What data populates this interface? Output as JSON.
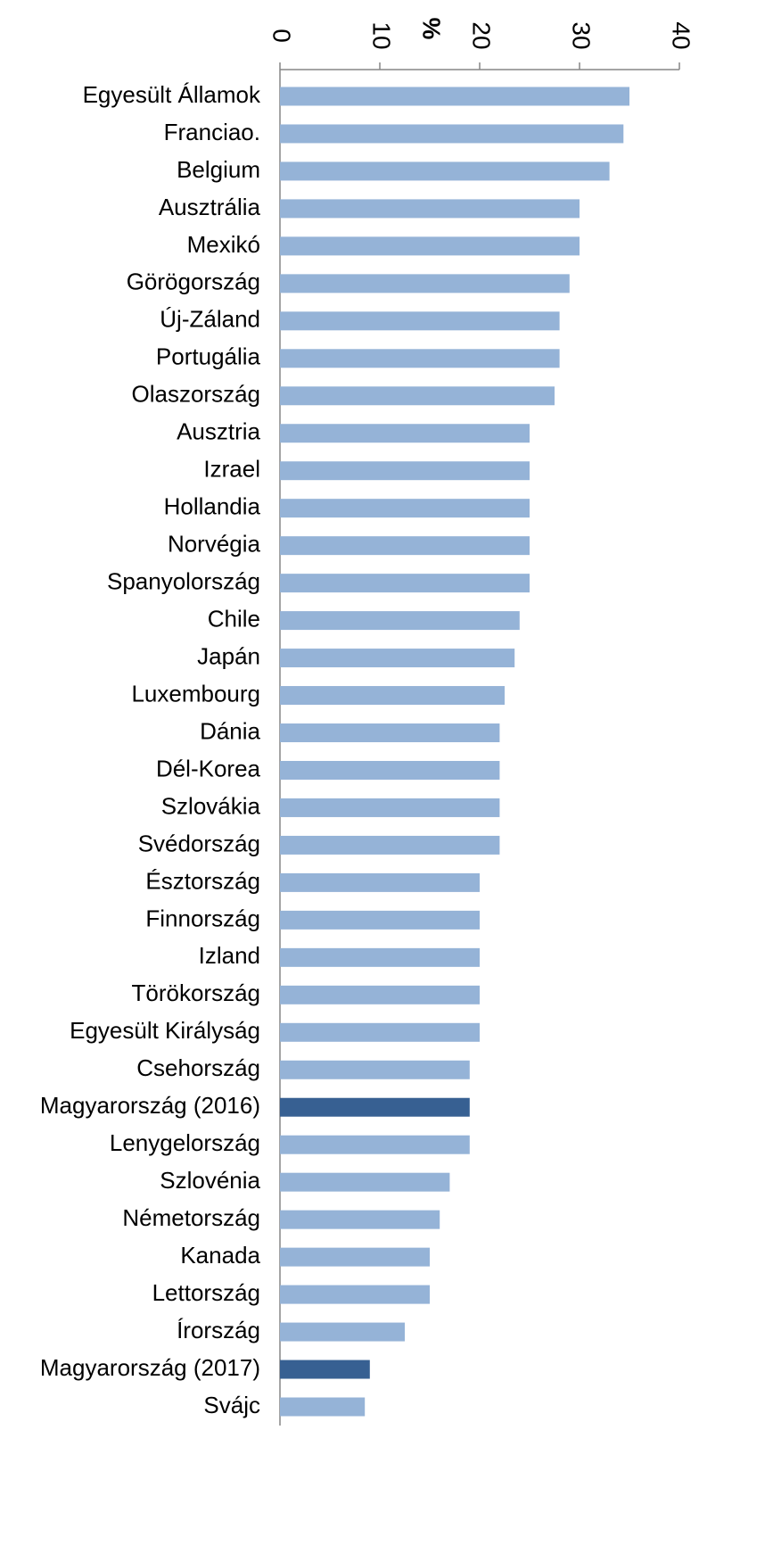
{
  "chart_data": {
    "type": "bar",
    "orientation": "horizontal",
    "axis_label": "%",
    "categories": [
      "Egyesült Államok",
      "Franciao.",
      "Belgium",
      "Ausztrália",
      "Mexikó",
      "Görögország",
      "Új-Záland",
      "Portugália",
      "Olaszország",
      "Ausztria",
      "Izrael",
      "Hollandia",
      "Norvégia",
      "Spanyolország",
      "Chile",
      "Japán",
      "Luxembourg",
      "Dánia",
      "Dél-Korea",
      "Szlovákia",
      "Svédország",
      "Észtország",
      "Finnország",
      "Izland",
      "Törökország",
      "Egyesült Királyság",
      "Csehország",
      "Magyarország (2016)",
      "Lenygelország",
      "Szlovénia",
      "Németország",
      "Kanada",
      "Lettország",
      "Írország",
      "Magyarország (2017)",
      "Svájc"
    ],
    "values": [
      35,
      34.4,
      33,
      30,
      30,
      29,
      28,
      28,
      27.5,
      25,
      25,
      25,
      25,
      25,
      24,
      23.5,
      22.5,
      22,
      22,
      22,
      22,
      20,
      20,
      20,
      20,
      20,
      19,
      19,
      19,
      17,
      16,
      15,
      15,
      12.5,
      9,
      8.5
    ],
    "colors": [
      "#95b3d7",
      "#95b3d7",
      "#95b3d7",
      "#95b3d7",
      "#95b3d7",
      "#95b3d7",
      "#95b3d7",
      "#95b3d7",
      "#95b3d7",
      "#95b3d7",
      "#95b3d7",
      "#95b3d7",
      "#95b3d7",
      "#95b3d7",
      "#95b3d7",
      "#95b3d7",
      "#95b3d7",
      "#95b3d7",
      "#95b3d7",
      "#95b3d7",
      "#95b3d7",
      "#95b3d7",
      "#95b3d7",
      "#95b3d7",
      "#95b3d7",
      "#95b3d7",
      "#95b3d7",
      "#376092",
      "#95b3d7",
      "#95b3d7",
      "#95b3d7",
      "#95b3d7",
      "#95b3d7",
      "#95b3d7",
      "#376092",
      "#95b3d7"
    ],
    "xlim": [
      0,
      40
    ],
    "xticks": [
      0,
      10,
      20,
      30,
      40
    ],
    "axis_position": "top"
  }
}
